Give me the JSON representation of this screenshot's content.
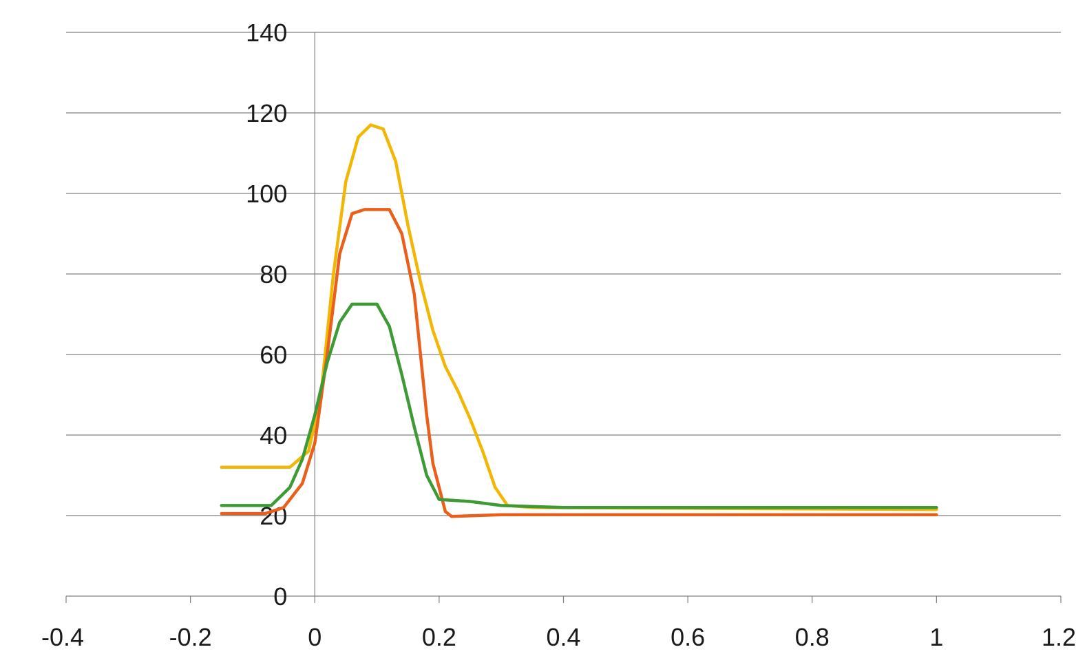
{
  "chart_data": {
    "type": "scatter",
    "title": "",
    "xlabel": "",
    "ylabel": "",
    "xlim": [
      -0.4,
      1.2
    ],
    "ylim": [
      0,
      140
    ],
    "grid": true,
    "legend": "none",
    "x_ticks": [
      "-0.4",
      "-0.2",
      "0",
      "0.2",
      "0.4",
      "0.6",
      "0.8",
      "1",
      "1.2"
    ],
    "y_ticks": [
      "0",
      "20",
      "40",
      "60",
      "80",
      "100",
      "120",
      "140"
    ],
    "series": [
      {
        "color": "#f2b705",
        "points": [
          [
            -0.15,
            32
          ],
          [
            -0.04,
            32
          ],
          [
            -0.01,
            36
          ],
          [
            0.01,
            50
          ],
          [
            0.03,
            80
          ],
          [
            0.05,
            103
          ],
          [
            0.07,
            114
          ],
          [
            0.09,
            117
          ],
          [
            0.11,
            116
          ],
          [
            0.13,
            108
          ],
          [
            0.15,
            92
          ],
          [
            0.17,
            78
          ],
          [
            0.19,
            66
          ],
          [
            0.21,
            57
          ],
          [
            0.23,
            51
          ],
          [
            0.25,
            44
          ],
          [
            0.27,
            36
          ],
          [
            0.29,
            27
          ],
          [
            0.31,
            22.5
          ],
          [
            0.35,
            22
          ],
          [
            1.0,
            21.5
          ]
        ]
      },
      {
        "color": "#e8601c",
        "points": [
          [
            -0.15,
            20.5
          ],
          [
            -0.08,
            20.5
          ],
          [
            -0.05,
            22
          ],
          [
            -0.02,
            28
          ],
          [
            0.0,
            38
          ],
          [
            0.02,
            60
          ],
          [
            0.04,
            85
          ],
          [
            0.06,
            95
          ],
          [
            0.08,
            96
          ],
          [
            0.12,
            96
          ],
          [
            0.14,
            90
          ],
          [
            0.16,
            75
          ],
          [
            0.17,
            60
          ],
          [
            0.18,
            45
          ],
          [
            0.19,
            33
          ],
          [
            0.21,
            21
          ],
          [
            0.22,
            19.8
          ],
          [
            0.3,
            20.2
          ],
          [
            0.5,
            20.2
          ],
          [
            1.0,
            20.2
          ]
        ]
      },
      {
        "color": "#3d9a35",
        "points": [
          [
            -0.15,
            22.5
          ],
          [
            -0.07,
            22.5
          ],
          [
            -0.04,
            27
          ],
          [
            -0.02,
            34
          ],
          [
            0.0,
            45
          ],
          [
            0.02,
            58
          ],
          [
            0.04,
            68
          ],
          [
            0.06,
            72.5
          ],
          [
            0.1,
            72.5
          ],
          [
            0.12,
            67
          ],
          [
            0.14,
            55
          ],
          [
            0.16,
            42
          ],
          [
            0.18,
            30
          ],
          [
            0.2,
            24
          ],
          [
            0.25,
            23.5
          ],
          [
            0.3,
            22.5
          ],
          [
            0.4,
            22
          ],
          [
            1.0,
            22
          ]
        ]
      }
    ]
  }
}
